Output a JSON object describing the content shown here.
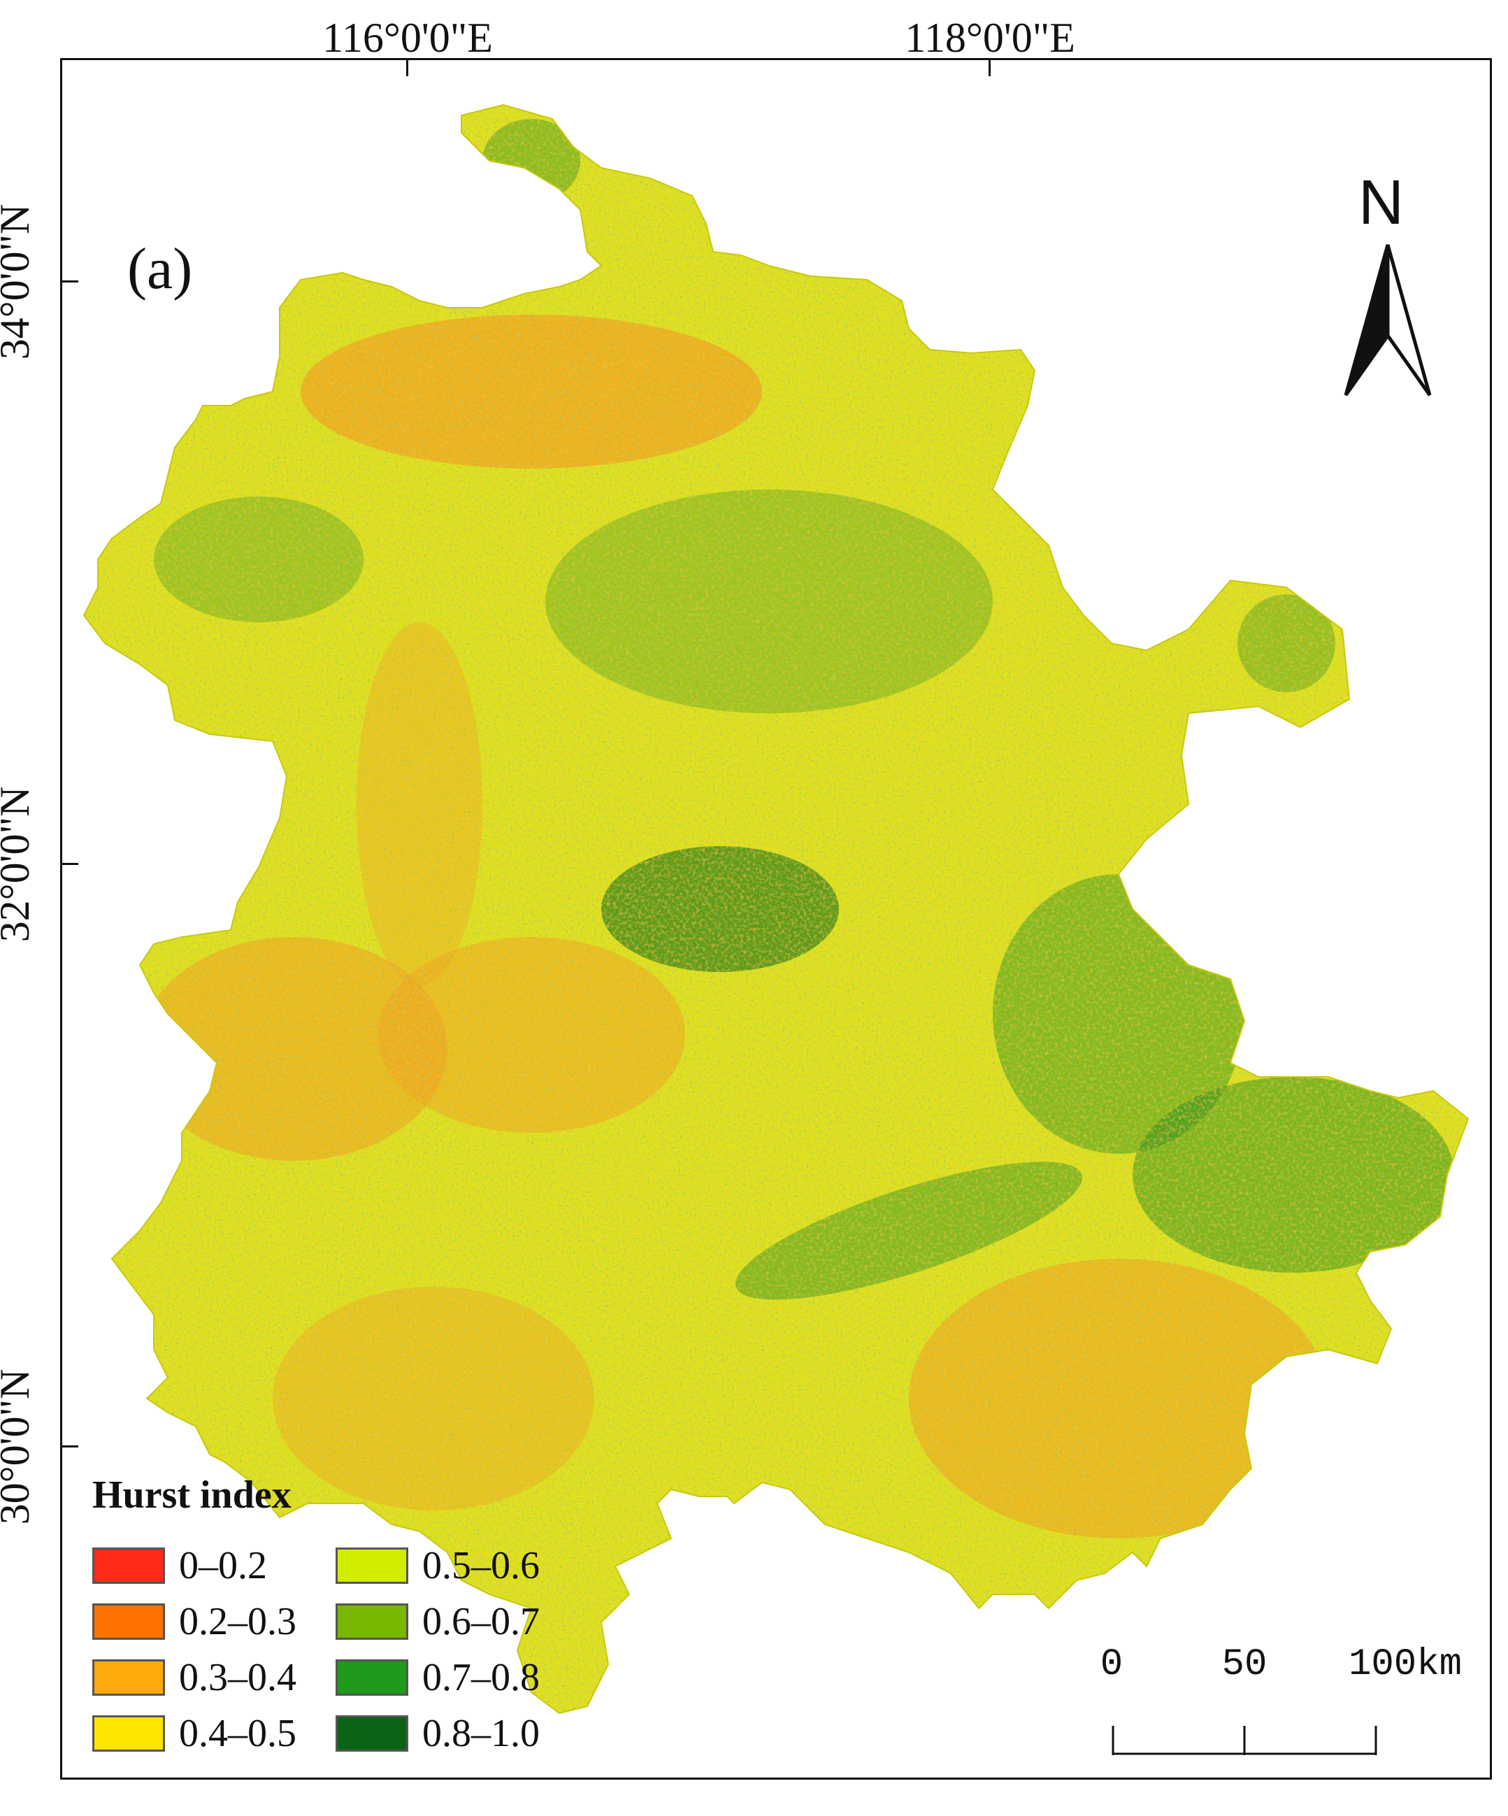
{
  "map": {
    "panel_label": "(a)",
    "longitude_labels": [
      "116°0'0\"E",
      "118°0'0\"E"
    ],
    "latitude_labels": [
      "34°0'0\"N",
      "32°0'0\"N",
      "30°0'0\"N"
    ],
    "north_label": "N",
    "scale": {
      "labels": [
        "0",
        "50",
        "100km"
      ]
    },
    "legend": {
      "title": "Hurst index",
      "items": [
        {
          "label": "0–0.2",
          "color": "#ff2a1a"
        },
        {
          "label": "0.2–0.3",
          "color": "#ff7200"
        },
        {
          "label": "0.3–0.4",
          "color": "#ffaa0a"
        },
        {
          "label": "0.4–0.5",
          "color": "#ffe600"
        },
        {
          "label": "0.5–0.6",
          "color": "#d2ec00"
        },
        {
          "label": "0.6–0.7",
          "color": "#78b800"
        },
        {
          "label": "0.7–0.8",
          "color": "#1f9a1a"
        },
        {
          "label": "0.8–1.0",
          "color": "#0a6416"
        }
      ]
    },
    "region_colors": {
      "dominant": "#dfe21a",
      "warm": "#f4a21c",
      "green": "#2f8f1f",
      "dark_green": "#0e6a18"
    }
  }
}
